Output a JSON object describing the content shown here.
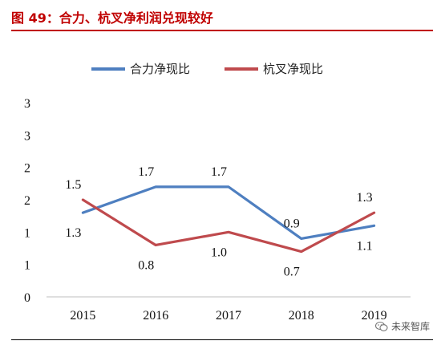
{
  "header": {
    "title": "图 49：合力、杭叉净利润兑现较好"
  },
  "colors": {
    "accent": "#c00000",
    "series_1": "#4e7fc0",
    "series_2": "#bf4a4d"
  },
  "watermark": {
    "text": "未来智库",
    "icon": "wechat-icon"
  },
  "chart_data": {
    "type": "line",
    "x": [
      "2015",
      "2016",
      "2017",
      "2018",
      "2019"
    ],
    "y_tick_labels": [
      "0",
      "1",
      "1",
      "2",
      "2",
      "3",
      "3"
    ],
    "ylim": [
      0,
      3
    ],
    "grid": false,
    "legend_position": "top-center",
    "series": [
      {
        "name": "合力净现比",
        "values": [
          1.3,
          1.7,
          1.7,
          0.9,
          1.1
        ],
        "labels": [
          "1.3",
          "1.7",
          "1.7",
          "0.9",
          "1.1"
        ],
        "label_side": [
          "below",
          "above",
          "above",
          "above",
          "below"
        ],
        "color": "#4e7fc0"
      },
      {
        "name": "杭叉净现比",
        "values": [
          1.5,
          0.8,
          1.0,
          0.7,
          1.3
        ],
        "labels": [
          "1.5",
          "0.8",
          "1.0",
          "0.7",
          "1.3"
        ],
        "label_side": [
          "above",
          "below",
          "below",
          "below",
          "above"
        ],
        "color": "#bf4a4d"
      }
    ]
  }
}
